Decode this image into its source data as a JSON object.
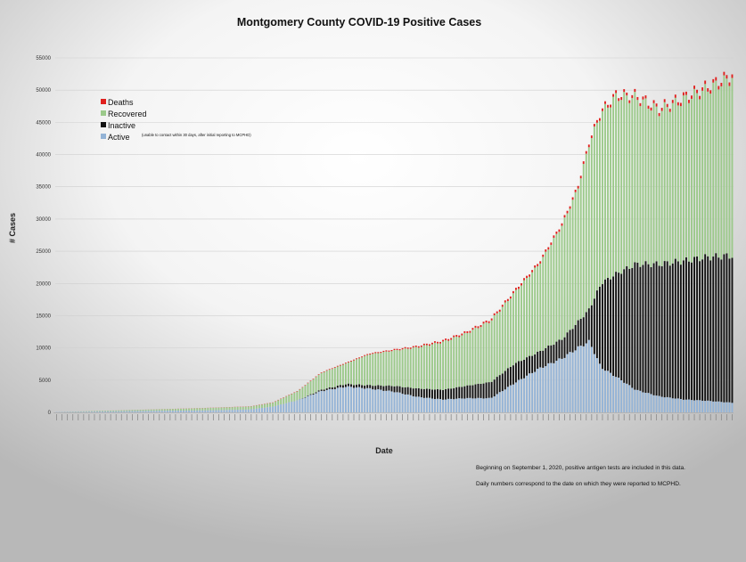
{
  "chart_data": {
    "type": "bar",
    "stacked": true,
    "title": "Montgomery County COVID-19 Positive Cases",
    "xlabel": "Date",
    "ylabel": "# Cases",
    "ylim": [
      0,
      55000
    ],
    "yticks": [
      0,
      5000,
      10000,
      15000,
      20000,
      25000,
      30000,
      35000,
      40000,
      45000,
      50000,
      55000
    ],
    "grid": true,
    "legend_position": "top-left",
    "legend": [
      {
        "name": "Deaths",
        "color": "#e0201e"
      },
      {
        "name": "Recovered",
        "color": "#9bc98a"
      },
      {
        "name": "Inactive",
        "color": "#111111",
        "note": "(unable to contact within 30 days, after initial reporting to MCPHD)"
      },
      {
        "name": "Active",
        "color": "#93b3d6"
      }
    ],
    "x_tick_labels_legible": false,
    "approx_bar_count": 250,
    "series_keyframes_note": "Values estimated from gridlines at sampled positions along the x-axis (index 0..250)",
    "series": [
      {
        "name": "Active",
        "points": [
          [
            0,
            50
          ],
          [
            25,
            150
          ],
          [
            50,
            250
          ],
          [
            75,
            300
          ],
          [
            100,
            450
          ],
          [
            112,
            900
          ],
          [
            125,
            1900
          ],
          [
            137,
            3300
          ],
          [
            150,
            4000
          ],
          [
            162,
            3700
          ],
          [
            175,
            3200
          ],
          [
            187,
            2400
          ],
          [
            200,
            2000
          ],
          [
            212,
            2200
          ],
          [
            225,
            2200
          ],
          [
            237,
            4500
          ],
          [
            250,
            6800
          ],
          [
            262,
            8400
          ],
          [
            270,
            10000
          ],
          [
            276,
            11000
          ],
          [
            282,
            7000
          ],
          [
            290,
            5500
          ],
          [
            300,
            3500
          ],
          [
            312,
            2500
          ],
          [
            325,
            2000
          ],
          [
            337,
            1800
          ],
          [
            350,
            1500
          ]
        ]
      },
      {
        "name": "Inactive",
        "points": [
          [
            0,
            0
          ],
          [
            125,
            0
          ],
          [
            137,
            200
          ],
          [
            150,
            400
          ],
          [
            162,
            500
          ],
          [
            175,
            900
          ],
          [
            187,
            1300
          ],
          [
            200,
            1500
          ],
          [
            212,
            1900
          ],
          [
            225,
            2500
          ],
          [
            237,
            3000
          ],
          [
            250,
            2600
          ],
          [
            262,
            3000
          ],
          [
            270,
            4000
          ],
          [
            276,
            5000
          ],
          [
            282,
            13000
          ],
          [
            290,
            16000
          ],
          [
            300,
            19500
          ],
          [
            312,
            20500
          ],
          [
            325,
            21500
          ],
          [
            337,
            22300
          ],
          [
            350,
            22800
          ]
        ]
      },
      {
        "name": "Recovered",
        "points": [
          [
            0,
            0
          ],
          [
            25,
            100
          ],
          [
            50,
            200
          ],
          [
            75,
            350
          ],
          [
            100,
            450
          ],
          [
            112,
            600
          ],
          [
            125,
            1400
          ],
          [
            137,
            2600
          ],
          [
            150,
            3200
          ],
          [
            162,
            4800
          ],
          [
            175,
            5500
          ],
          [
            187,
            6400
          ],
          [
            200,
            7400
          ],
          [
            212,
            8100
          ],
          [
            225,
            9500
          ],
          [
            237,
            11000
          ],
          [
            250,
            13600
          ],
          [
            262,
            17700
          ],
          [
            270,
            20700
          ],
          [
            276,
            25800
          ],
          [
            282,
            26400
          ],
          [
            290,
            27500
          ],
          [
            300,
            25800
          ],
          [
            312,
            23800
          ],
          [
            325,
            25000
          ],
          [
            337,
            26000
          ],
          [
            350,
            27600
          ]
        ]
      },
      {
        "name": "Deaths",
        "points": [
          [
            0,
            0
          ],
          [
            50,
            10
          ],
          [
            100,
            30
          ],
          [
            125,
            60
          ],
          [
            150,
            120
          ],
          [
            175,
            180
          ],
          [
            200,
            250
          ],
          [
            225,
            300
          ],
          [
            250,
            350
          ],
          [
            275,
            400
          ],
          [
            300,
            450
          ],
          [
            325,
            500
          ],
          [
            350,
            550
          ]
        ]
      }
    ],
    "footnotes": [
      "Beginning on September 1, 2020, positive antigen tests are included in this data.",
      "Daily numbers correspond to the date on which they were reported to MCPHD."
    ]
  }
}
